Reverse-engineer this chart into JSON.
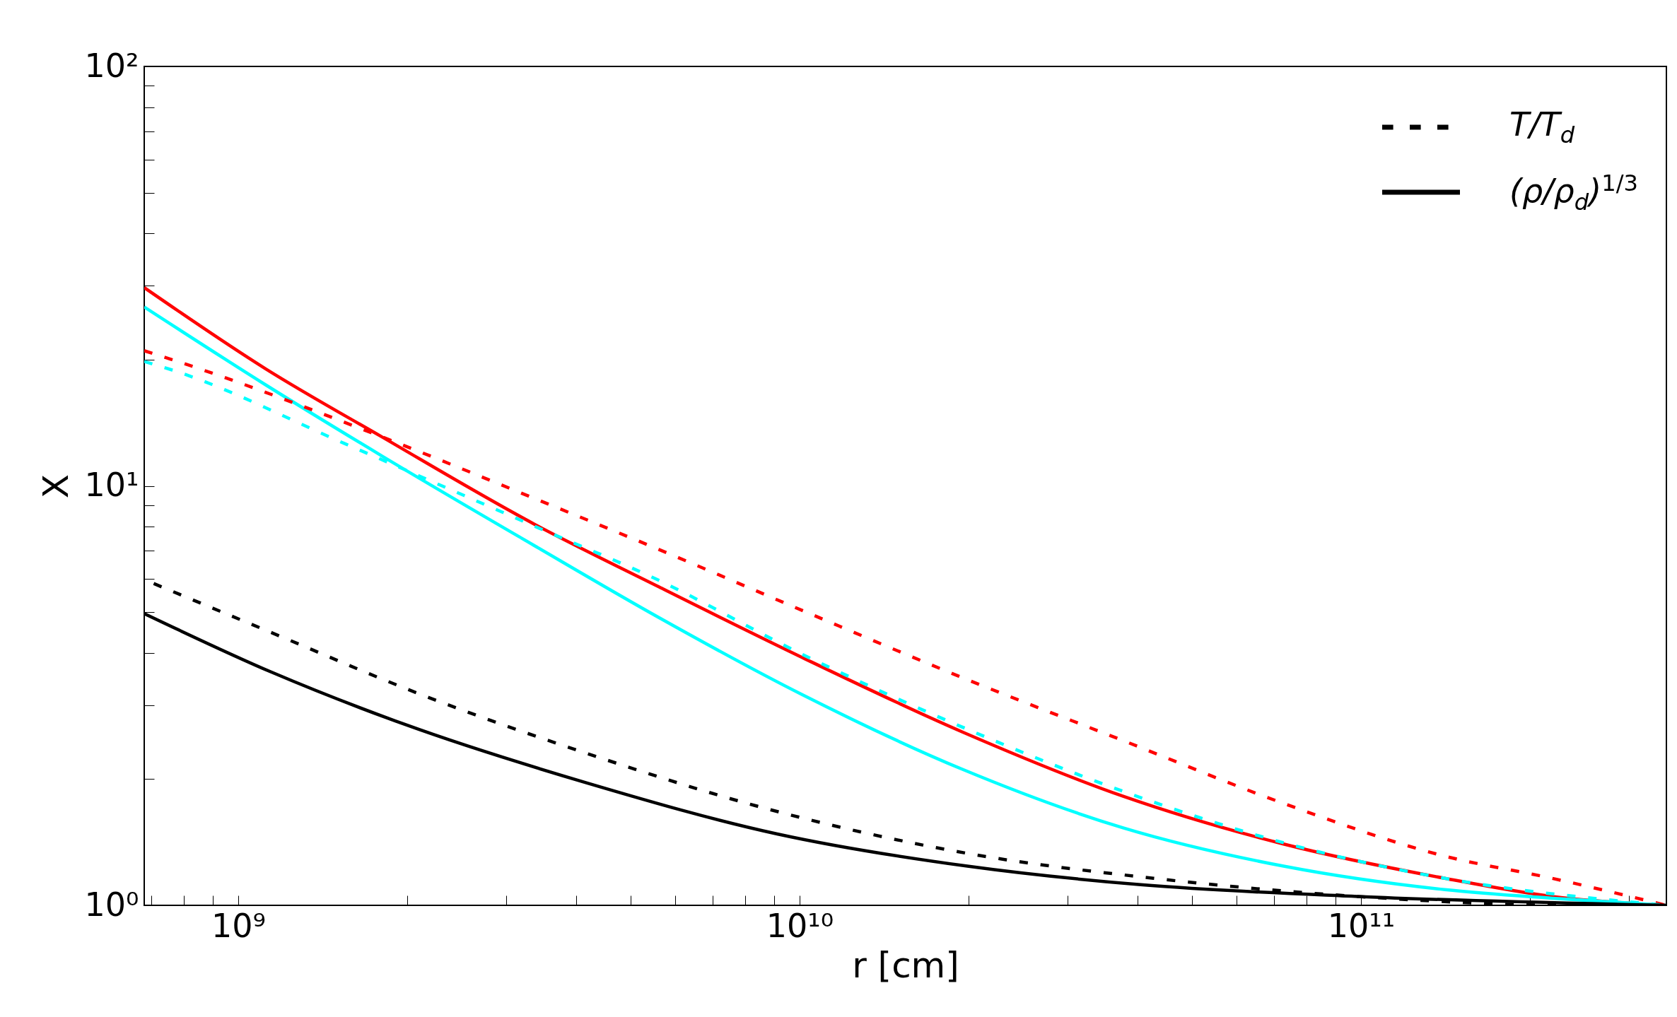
{
  "chart_data": {
    "type": "line",
    "xlabel": "r [cm]",
    "ylabel": "X",
    "log": "xy",
    "grid": false,
    "legend": "top right",
    "xlim": [
      680000000.0,
      350000000000.0
    ],
    "ylim": [
      1,
      100
    ],
    "xticks": [
      {
        "value": 700000000.0,
        "label": null
      },
      {
        "value": 800000000.0,
        "label": null
      },
      {
        "value": 900000000.0,
        "label": null
      },
      {
        "value": 1000000000.0,
        "label": "10⁹"
      },
      {
        "value": 2000000000.0,
        "label": null
      },
      {
        "value": 3000000000.0,
        "label": null
      },
      {
        "value": 4000000000.0,
        "label": null
      },
      {
        "value": 5000000000.0,
        "label": null
      },
      {
        "value": 6000000000.0,
        "label": null
      },
      {
        "value": 7000000000.0,
        "label": null
      },
      {
        "value": 8000000000.0,
        "label": null
      },
      {
        "value": 9000000000.0,
        "label": null
      },
      {
        "value": 10000000000.0,
        "label": "10¹⁰"
      },
      {
        "value": 20000000000.0,
        "label": null
      },
      {
        "value": 30000000000.0,
        "label": null
      },
      {
        "value": 40000000000.0,
        "label": null
      },
      {
        "value": 50000000000.0,
        "label": null
      },
      {
        "value": 60000000000.0,
        "label": null
      },
      {
        "value": 70000000000.0,
        "label": null
      },
      {
        "value": 80000000000.0,
        "label": null
      },
      {
        "value": 90000000000.0,
        "label": null
      },
      {
        "value": 100000000000.0,
        "label": "10¹¹"
      },
      {
        "value": 200000000000.0,
        "label": null
      },
      {
        "value": 300000000000.0,
        "label": null
      }
    ],
    "yticks": [
      {
        "value": 1,
        "label": "10⁰"
      },
      {
        "value": 2,
        "label": null
      },
      {
        "value": 3,
        "label": null
      },
      {
        "value": 4,
        "label": null
      },
      {
        "value": 5,
        "label": null
      },
      {
        "value": 6,
        "label": null
      },
      {
        "value": 7,
        "label": null
      },
      {
        "value": 8,
        "label": null
      },
      {
        "value": 9,
        "label": null
      },
      {
        "value": 10,
        "label": "10¹"
      },
      {
        "value": 20,
        "label": null
      },
      {
        "value": 30,
        "label": null
      },
      {
        "value": 40,
        "label": null
      },
      {
        "value": 50,
        "label": null
      },
      {
        "value": 60,
        "label": null
      },
      {
        "value": 70,
        "label": null
      },
      {
        "value": 80,
        "label": null
      },
      {
        "value": 90,
        "label": null
      },
      {
        "value": 100,
        "label": "10²"
      }
    ],
    "series": [
      {
        "color": "#ff0000",
        "line_style": "solid",
        "x": [
          680000000.0,
          1120000000.0,
          1800000000.0,
          3360000000.0,
          5620000000.0,
          10100000000.0,
          19500000000.0,
          37700000000.0,
          72800000000.0,
          141000000000.0,
          219000000000.0,
          350000000000.0
        ],
        "values": [
          29.7,
          19.0,
          13.1,
          8.12,
          5.74,
          3.9,
          2.59,
          1.82,
          1.4,
          1.16,
          1.05,
          1.0
        ]
      },
      {
        "color": "#00ffff",
        "line_style": "solid",
        "x": [
          680000000.0,
          1120000000.0,
          1800000000.0,
          3360000000.0,
          5620000000.0,
          10100000000.0,
          19500000000.0,
          37700000000.0,
          72800000000.0,
          141000000000.0,
          219000000000.0,
          350000000000.0
        ],
        "values": [
          26.7,
          17.4,
          11.8,
          7.22,
          4.85,
          3.18,
          2.11,
          1.53,
          1.24,
          1.09,
          1.04,
          1.0
        ]
      },
      {
        "color": "#ff0000",
        "line_style": "dotted",
        "x": [
          680000000.0,
          771000000.0,
          1800000000.0,
          3360000000.0,
          5620000000.0,
          10100000000.0,
          19500000000.0,
          37700000000.0,
          72800000000.0,
          141000000000.0,
          219000000000.0,
          350000000000.0
        ],
        "values": [
          21.0,
          19.9,
          13.1,
          9.35,
          7.05,
          5.05,
          3.49,
          2.47,
          1.75,
          1.31,
          1.16,
          1.0
        ]
      },
      {
        "color": "#00ffff",
        "line_style": "dotted",
        "x": [
          680000000.0,
          771000000.0,
          1550000000.0,
          3360000000.0,
          5620000000.0,
          10100000000.0,
          19500000000.0,
          37700000000.0,
          72800000000.0,
          141000000000.0,
          350000000000.0
        ],
        "values": [
          19.8,
          18.8,
          12.6,
          8.03,
          5.95,
          3.97,
          2.66,
          1.87,
          1.41,
          1.16,
          1.0
        ]
      },
      {
        "name": "T/T$_{d}$",
        "color": "#000000",
        "line_style": "dotted",
        "x": [
          707000000.0,
          1150000000.0,
          2080000000.0,
          4400000000.0,
          8320000000.0,
          19900000000.0,
          42700000000.0,
          98600000000.0,
          240000000000.0,
          350000000000.0
        ],
        "values": [
          5.85,
          4.46,
          3.21,
          2.25,
          1.73,
          1.33,
          1.16,
          1.05,
          1.0,
          1.0
        ]
      },
      {
        "name": "(ρ/ρ$_{d}$)$^{1/3}$",
        "color": "#000000",
        "line_style": "solid",
        "x": [
          680000000.0,
          1150000000.0,
          1980000000.0,
          4170000000.0,
          9120000000.0,
          19900000000.0,
          40500000000.0,
          98600000000.0,
          350000000000.0
        ],
        "values": [
          4.96,
          3.59,
          2.7,
          1.96,
          1.48,
          1.24,
          1.12,
          1.05,
          1.0
        ]
      }
    ]
  }
}
